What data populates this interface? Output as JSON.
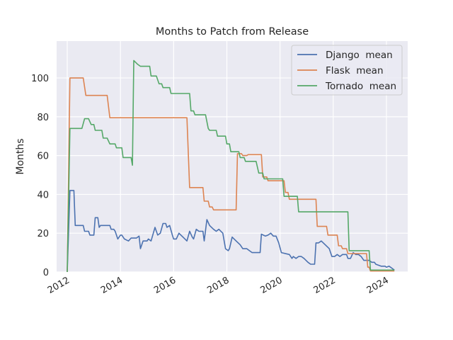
{
  "chart_data": {
    "type": "line",
    "title": "Months to Patch from Release",
    "xlabel": "",
    "ylabel": "Months",
    "x_ticks": [
      "2012",
      "2014",
      "2016",
      "2018",
      "2020",
      "2022",
      "2024"
    ],
    "y_ticks": [
      "0",
      "20",
      "40",
      "60",
      "80",
      "100"
    ],
    "xlim": [
      2011.6,
      2024.8
    ],
    "ylim": [
      0,
      119
    ],
    "grid": true,
    "legend_position": "top-right",
    "series": [
      {
        "name": "Django  mean",
        "color": "#4c72b0",
        "points": [
          [
            2012.0,
            0
          ],
          [
            2012.1,
            42
          ],
          [
            2012.25,
            42
          ],
          [
            2012.3,
            24
          ],
          [
            2012.6,
            24
          ],
          [
            2012.65,
            21
          ],
          [
            2012.8,
            21
          ],
          [
            2012.85,
            19
          ],
          [
            2013.0,
            19
          ],
          [
            2013.05,
            28
          ],
          [
            2013.15,
            28
          ],
          [
            2013.2,
            23
          ],
          [
            2013.25,
            24
          ],
          [
            2013.6,
            24
          ],
          [
            2013.65,
            22
          ],
          [
            2013.75,
            22
          ],
          [
            2013.8,
            21
          ],
          [
            2013.9,
            17
          ],
          [
            2014.0,
            19
          ],
          [
            2014.05,
            19
          ],
          [
            2014.15,
            17
          ],
          [
            2014.3,
            16
          ],
          [
            2014.4,
            17.5
          ],
          [
            2014.6,
            17.5
          ],
          [
            2014.7,
            18.5
          ],
          [
            2014.75,
            12
          ],
          [
            2014.85,
            16
          ],
          [
            2015.0,
            16
          ],
          [
            2015.05,
            17
          ],
          [
            2015.15,
            16
          ],
          [
            2015.3,
            23
          ],
          [
            2015.4,
            19
          ],
          [
            2015.5,
            20
          ],
          [
            2015.6,
            25
          ],
          [
            2015.7,
            25
          ],
          [
            2015.75,
            23
          ],
          [
            2015.85,
            24
          ],
          [
            2015.95,
            19
          ],
          [
            2016.0,
            17
          ],
          [
            2016.1,
            17
          ],
          [
            2016.2,
            20
          ],
          [
            2016.35,
            18
          ],
          [
            2016.5,
            16
          ],
          [
            2016.6,
            21
          ],
          [
            2016.7,
            18
          ],
          [
            2016.75,
            17
          ],
          [
            2016.85,
            22
          ],
          [
            2016.95,
            21
          ],
          [
            2017.1,
            21
          ],
          [
            2017.15,
            16
          ],
          [
            2017.25,
            27
          ],
          [
            2017.35,
            24
          ],
          [
            2017.5,
            22
          ],
          [
            2017.6,
            21
          ],
          [
            2017.7,
            22
          ],
          [
            2017.85,
            20
          ],
          [
            2017.95,
            12
          ],
          [
            2018.05,
            11
          ],
          [
            2018.1,
            12
          ],
          [
            2018.2,
            18
          ],
          [
            2018.35,
            16
          ],
          [
            2018.5,
            14
          ],
          [
            2018.6,
            12
          ],
          [
            2018.75,
            12
          ],
          [
            2018.85,
            11
          ],
          [
            2018.95,
            10
          ],
          [
            2019.25,
            10
          ],
          [
            2019.3,
            19.5
          ],
          [
            2019.45,
            18.5
          ],
          [
            2019.55,
            19
          ],
          [
            2019.65,
            20
          ],
          [
            2019.75,
            18.5
          ],
          [
            2019.85,
            18.5
          ],
          [
            2019.95,
            15
          ],
          [
            2020.05,
            10
          ],
          [
            2020.35,
            9
          ],
          [
            2020.45,
            7
          ],
          [
            2020.5,
            8
          ],
          [
            2020.6,
            7
          ],
          [
            2020.7,
            8
          ],
          [
            2020.8,
            8
          ],
          [
            2020.9,
            7
          ],
          [
            2021.05,
            5
          ],
          [
            2021.15,
            4
          ],
          [
            2021.3,
            4
          ],
          [
            2021.35,
            15
          ],
          [
            2021.45,
            15
          ],
          [
            2021.55,
            16
          ],
          [
            2021.7,
            14
          ],
          [
            2021.85,
            12
          ],
          [
            2021.95,
            8
          ],
          [
            2022.05,
            8
          ],
          [
            2022.15,
            9
          ],
          [
            2022.25,
            8
          ],
          [
            2022.35,
            9
          ],
          [
            2022.5,
            9
          ],
          [
            2022.55,
            7
          ],
          [
            2022.65,
            7
          ],
          [
            2022.75,
            10
          ],
          [
            2022.85,
            9
          ],
          [
            2022.95,
            9
          ],
          [
            2023.05,
            8
          ],
          [
            2023.15,
            6
          ],
          [
            2023.35,
            6
          ],
          [
            2023.45,
            5
          ],
          [
            2023.55,
            5
          ],
          [
            2023.6,
            4
          ],
          [
            2023.8,
            3
          ],
          [
            2023.95,
            3
          ],
          [
            2024.0,
            2.5
          ],
          [
            2024.1,
            3
          ],
          [
            2024.2,
            2
          ],
          [
            2024.3,
            1
          ]
        ]
      },
      {
        "name": "Flask  mean",
        "color": "#dd8452",
        "points": [
          [
            2012.0,
            0
          ],
          [
            2012.1,
            100
          ],
          [
            2012.6,
            100
          ],
          [
            2012.7,
            91
          ],
          [
            2013.5,
            91
          ],
          [
            2013.6,
            79.5
          ],
          [
            2016.5,
            79.5
          ],
          [
            2016.6,
            43.5
          ],
          [
            2017.1,
            43.5
          ],
          [
            2017.15,
            36.5
          ],
          [
            2017.3,
            36.5
          ],
          [
            2017.35,
            33.5
          ],
          [
            2017.45,
            33.5
          ],
          [
            2017.5,
            32
          ],
          [
            2018.35,
            32
          ],
          [
            2018.4,
            61
          ],
          [
            2018.55,
            61
          ],
          [
            2018.6,
            60
          ],
          [
            2018.75,
            60
          ],
          [
            2018.8,
            60.5
          ],
          [
            2019.3,
            60.5
          ],
          [
            2019.35,
            49
          ],
          [
            2019.5,
            49
          ],
          [
            2019.55,
            47
          ],
          [
            2020.15,
            47
          ],
          [
            2020.2,
            41
          ],
          [
            2020.3,
            41
          ],
          [
            2020.35,
            37.5
          ],
          [
            2021.35,
            37.5
          ],
          [
            2021.4,
            23.5
          ],
          [
            2021.75,
            23.5
          ],
          [
            2021.8,
            19
          ],
          [
            2022.15,
            19
          ],
          [
            2022.2,
            13.5
          ],
          [
            2022.3,
            13.5
          ],
          [
            2022.35,
            12
          ],
          [
            2022.5,
            12
          ],
          [
            2022.55,
            9.5
          ],
          [
            2023.25,
            9.5
          ],
          [
            2023.3,
            2.5
          ],
          [
            2023.35,
            2.5
          ],
          [
            2023.4,
            0.5
          ],
          [
            2024.3,
            0.5
          ]
        ]
      },
      {
        "name": "Tornado  mean",
        "color": "#55a868",
        "points": [
          [
            2012.0,
            0
          ],
          [
            2012.1,
            74
          ],
          [
            2012.55,
            74
          ],
          [
            2012.65,
            79
          ],
          [
            2012.8,
            79
          ],
          [
            2012.9,
            76
          ],
          [
            2013.0,
            76
          ],
          [
            2013.05,
            73
          ],
          [
            2013.3,
            73
          ],
          [
            2013.35,
            69
          ],
          [
            2013.5,
            69
          ],
          [
            2013.6,
            66
          ],
          [
            2013.8,
            66
          ],
          [
            2013.85,
            64
          ],
          [
            2014.05,
            64
          ],
          [
            2014.1,
            59
          ],
          [
            2014.4,
            59
          ],
          [
            2014.45,
            55
          ],
          [
            2014.5,
            109
          ],
          [
            2014.65,
            107
          ],
          [
            2014.75,
            106
          ],
          [
            2015.1,
            106
          ],
          [
            2015.15,
            101
          ],
          [
            2015.35,
            101
          ],
          [
            2015.45,
            97
          ],
          [
            2015.55,
            97
          ],
          [
            2015.6,
            95
          ],
          [
            2015.85,
            95
          ],
          [
            2015.9,
            92
          ],
          [
            2016.6,
            92
          ],
          [
            2016.65,
            83
          ],
          [
            2016.75,
            83
          ],
          [
            2016.8,
            81
          ],
          [
            2017.2,
            81
          ],
          [
            2017.3,
            74
          ],
          [
            2017.35,
            73
          ],
          [
            2017.6,
            73
          ],
          [
            2017.65,
            70
          ],
          [
            2017.95,
            70
          ],
          [
            2018.0,
            66
          ],
          [
            2018.1,
            66
          ],
          [
            2018.15,
            62
          ],
          [
            2018.45,
            62
          ],
          [
            2018.5,
            59
          ],
          [
            2018.65,
            59
          ],
          [
            2018.7,
            57
          ],
          [
            2019.1,
            57
          ],
          [
            2019.2,
            51
          ],
          [
            2019.35,
            51
          ],
          [
            2019.4,
            48
          ],
          [
            2020.1,
            48
          ],
          [
            2020.15,
            39
          ],
          [
            2020.65,
            39
          ],
          [
            2020.7,
            31
          ],
          [
            2022.55,
            31
          ],
          [
            2022.6,
            11
          ],
          [
            2023.35,
            11
          ],
          [
            2023.4,
            1
          ],
          [
            2024.3,
            1
          ]
        ]
      }
    ]
  }
}
